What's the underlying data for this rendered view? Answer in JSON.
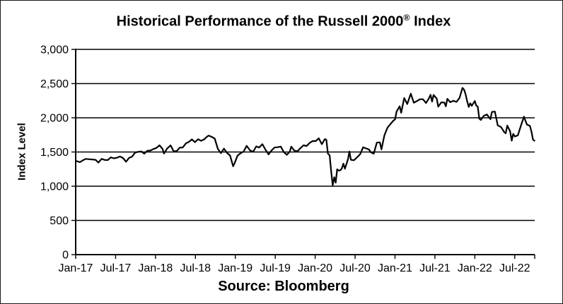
{
  "chart_data": {
    "type": "line",
    "title": {
      "main": "Historical Performance of the Russell 2000",
      "sup": "®",
      "tail": " Index"
    },
    "ylabel": "Index Level",
    "source_label": "Source: Bloomberg",
    "legend": "none",
    "grid": "horizontal",
    "line_color": "#000000",
    "y_axis": {
      "min": 0,
      "max": 3000,
      "tick_interval": 500,
      "tick_values": [
        0,
        500,
        1000,
        1500,
        2000,
        2500,
        3000
      ],
      "tick_labels": [
        "0",
        "500",
        "1,000",
        "1,500",
        "2,000",
        "2,500",
        "3,000"
      ]
    },
    "x_axis": {
      "tick_labels": [
        "Jan-17",
        "Jul-17",
        "Jan-18",
        "Jul-18",
        "Jan-19",
        "Jul-19",
        "Jan-20",
        "Jul-20",
        "Jan-21",
        "Jul-21",
        "Jan-22",
        "Jul-22"
      ],
      "tick_months": [
        0,
        6,
        12,
        18,
        24,
        30,
        36,
        42,
        48,
        54,
        60,
        66
      ],
      "end_month": 69
    },
    "series": [
      {
        "name": "Russell 2000® Index Level",
        "points_format": "[months since Jan-2017, index level]",
        "points": [
          [
            0.17,
            1367
          ],
          [
            0.63,
            1351
          ],
          [
            1.07,
            1378
          ],
          [
            1.53,
            1399
          ],
          [
            2.07,
            1394
          ],
          [
            2.53,
            1391
          ],
          [
            2.99,
            1386
          ],
          [
            3.41,
            1345
          ],
          [
            3.9,
            1400
          ],
          [
            4.37,
            1383
          ],
          [
            4.83,
            1382
          ],
          [
            5.28,
            1422
          ],
          [
            5.74,
            1407
          ],
          [
            6.2,
            1416
          ],
          [
            6.66,
            1435
          ],
          [
            7.11,
            1412
          ],
          [
            7.57,
            1358
          ],
          [
            8.02,
            1413
          ],
          [
            8.47,
            1432
          ],
          [
            8.93,
            1491
          ],
          [
            9.4,
            1503
          ],
          [
            9.86,
            1508
          ],
          [
            10.31,
            1476
          ],
          [
            10.77,
            1519
          ],
          [
            11.24,
            1522
          ],
          [
            11.7,
            1543
          ],
          [
            12.14,
            1560
          ],
          [
            12.6,
            1598
          ],
          [
            13.05,
            1547
          ],
          [
            13.28,
            1477
          ],
          [
            13.74,
            1549
          ],
          [
            14.27,
            1597
          ],
          [
            14.73,
            1510
          ],
          [
            15.18,
            1513
          ],
          [
            15.64,
            1564
          ],
          [
            16.1,
            1566
          ],
          [
            16.57,
            1627
          ],
          [
            17.02,
            1648
          ],
          [
            17.47,
            1685
          ],
          [
            17.93,
            1643
          ],
          [
            18.4,
            1687
          ],
          [
            18.86,
            1663
          ],
          [
            19.31,
            1686
          ],
          [
            19.77,
            1726
          ],
          [
            20.0,
            1740
          ],
          [
            20.44,
            1722
          ],
          [
            20.9,
            1696
          ],
          [
            21.37,
            1546
          ],
          [
            21.83,
            1484
          ],
          [
            22.28,
            1549
          ],
          [
            22.74,
            1488
          ],
          [
            23.21,
            1448
          ],
          [
            23.67,
            1292
          ],
          [
            23.9,
            1338
          ],
          [
            24.33,
            1447
          ],
          [
            24.79,
            1482
          ],
          [
            25.24,
            1506
          ],
          [
            25.7,
            1590
          ],
          [
            26.24,
            1521
          ],
          [
            26.7,
            1505
          ],
          [
            27.14,
            1582
          ],
          [
            27.57,
            1565
          ],
          [
            28.07,
            1614
          ],
          [
            28.53,
            1535
          ],
          [
            28.99,
            1465
          ],
          [
            29.44,
            1522
          ],
          [
            29.9,
            1566
          ],
          [
            30.37,
            1570
          ],
          [
            30.83,
            1579
          ],
          [
            31.28,
            1499
          ],
          [
            31.74,
            1459
          ],
          [
            32.18,
            1505
          ],
          [
            32.41,
            1578
          ],
          [
            32.87,
            1520
          ],
          [
            33.34,
            1511
          ],
          [
            33.8,
            1558
          ],
          [
            34.25,
            1598
          ],
          [
            34.71,
            1588
          ],
          [
            35.18,
            1634
          ],
          [
            35.64,
            1661
          ],
          [
            36.08,
            1660
          ],
          [
            36.54,
            1700
          ],
          [
            37.0,
            1614
          ],
          [
            37.45,
            1688
          ],
          [
            37.68,
            1679
          ],
          [
            37.91,
            1476
          ],
          [
            38.18,
            1449
          ],
          [
            38.41,
            1210
          ],
          [
            38.64,
            1014
          ],
          [
            38.87,
            1132
          ],
          [
            39.08,
            1052
          ],
          [
            39.31,
            1247
          ],
          [
            39.54,
            1229
          ],
          [
            39.77,
            1233
          ],
          [
            40.01,
            1260
          ],
          [
            40.24,
            1330
          ],
          [
            40.47,
            1256
          ],
          [
            40.93,
            1394
          ],
          [
            41.14,
            1507
          ],
          [
            41.37,
            1387
          ],
          [
            41.83,
            1379
          ],
          [
            42.3,
            1423
          ],
          [
            42.76,
            1468
          ],
          [
            43.21,
            1569
          ],
          [
            43.67,
            1552
          ],
          [
            44.11,
            1535
          ],
          [
            44.34,
            1497
          ],
          [
            44.8,
            1475
          ],
          [
            45.27,
            1637
          ],
          [
            45.73,
            1641
          ],
          [
            45.96,
            1538
          ],
          [
            46.41,
            1744
          ],
          [
            46.87,
            1855
          ],
          [
            47.34,
            1911
          ],
          [
            47.77,
            1960
          ],
          [
            48.0,
            1975
          ],
          [
            48.24,
            2091
          ],
          [
            48.7,
            2168
          ],
          [
            48.93,
            2073
          ],
          [
            49.38,
            2289
          ],
          [
            49.84,
            2201
          ],
          [
            50.37,
            2353
          ],
          [
            50.83,
            2221
          ],
          [
            51.28,
            2243
          ],
          [
            51.74,
            2271
          ],
          [
            52.2,
            2271
          ],
          [
            52.66,
            2215
          ],
          [
            53.11,
            2286
          ],
          [
            53.34,
            2336
          ],
          [
            53.57,
            2237
          ],
          [
            53.8,
            2334
          ],
          [
            54.27,
            2280
          ],
          [
            54.5,
            2163
          ],
          [
            54.96,
            2226
          ],
          [
            55.41,
            2223
          ],
          [
            55.64,
            2167
          ],
          [
            55.87,
            2277
          ],
          [
            56.31,
            2228
          ],
          [
            56.77,
            2248
          ],
          [
            57.24,
            2233
          ],
          [
            57.7,
            2291
          ],
          [
            58.15,
            2437
          ],
          [
            58.38,
            2411
          ],
          [
            58.61,
            2343
          ],
          [
            58.84,
            2245
          ],
          [
            59.08,
            2159
          ],
          [
            59.31,
            2212
          ],
          [
            59.54,
            2174
          ],
          [
            60.0,
            2245
          ],
          [
            60.21,
            2179
          ],
          [
            60.44,
            2163
          ],
          [
            60.67,
            1988
          ],
          [
            60.9,
            1968
          ],
          [
            61.35,
            2030
          ],
          [
            61.81,
            2048
          ],
          [
            62.34,
            1979
          ],
          [
            62.57,
            2086
          ],
          [
            63.01,
            2091
          ],
          [
            63.44,
            1890
          ],
          [
            63.94,
            1864
          ],
          [
            64.41,
            1793
          ],
          [
            64.64,
            1773
          ],
          [
            64.87,
            1887
          ],
          [
            65.31,
            1800
          ],
          [
            65.54,
            1666
          ],
          [
            65.77,
            1766
          ],
          [
            66.01,
            1727
          ],
          [
            66.47,
            1744
          ],
          [
            66.93,
            1885
          ],
          [
            67.38,
            2017
          ],
          [
            67.61,
            1957
          ],
          [
            67.84,
            1900
          ],
          [
            68.28,
            1882
          ],
          [
            68.51,
            1798
          ],
          [
            68.74,
            1680
          ],
          [
            68.97,
            1665
          ]
        ]
      }
    ]
  }
}
